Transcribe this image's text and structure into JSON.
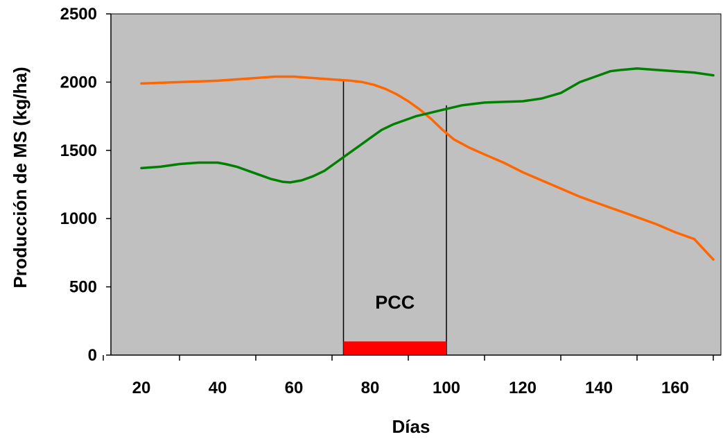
{
  "chart_data": {
    "type": "line",
    "xlabel": "Días",
    "ylabel": "Producción de MS (kg/ha)",
    "xlim": [
      12,
      172
    ],
    "ylim": [
      0,
      2500
    ],
    "x_ticks": [
      20,
      40,
      60,
      80,
      100,
      120,
      140,
      160
    ],
    "y_ticks": [
      0,
      500,
      1000,
      1500,
      2000,
      2500
    ],
    "grid": false,
    "plot_background": "#c0c0c0",
    "series": [
      {
        "color": "#ff6600",
        "points": [
          [
            20,
            1990
          ],
          [
            30,
            2000
          ],
          [
            40,
            2010
          ],
          [
            50,
            2030
          ],
          [
            55,
            2040
          ],
          [
            60,
            2040
          ],
          [
            70,
            2020
          ],
          [
            75,
            2010
          ],
          [
            78,
            2000
          ],
          [
            81,
            1980
          ],
          [
            84,
            1950
          ],
          [
            87,
            1910
          ],
          [
            90,
            1860
          ],
          [
            93,
            1800
          ],
          [
            96,
            1730
          ],
          [
            99,
            1650
          ],
          [
            102,
            1580
          ],
          [
            106,
            1520
          ],
          [
            110,
            1470
          ],
          [
            115,
            1410
          ],
          [
            120,
            1340
          ],
          [
            125,
            1280
          ],
          [
            130,
            1220
          ],
          [
            135,
            1160
          ],
          [
            140,
            1110
          ],
          [
            145,
            1060
          ],
          [
            150,
            1010
          ],
          [
            155,
            960
          ],
          [
            160,
            900
          ],
          [
            165,
            850
          ],
          [
            170,
            700
          ]
        ]
      },
      {
        "color": "#008000",
        "points": [
          [
            20,
            1370
          ],
          [
            25,
            1380
          ],
          [
            30,
            1400
          ],
          [
            35,
            1410
          ],
          [
            40,
            1410
          ],
          [
            42,
            1400
          ],
          [
            45,
            1380
          ],
          [
            48,
            1350
          ],
          [
            51,
            1320
          ],
          [
            54,
            1290
          ],
          [
            57,
            1270
          ],
          [
            59,
            1265
          ],
          [
            62,
            1280
          ],
          [
            65,
            1310
          ],
          [
            68,
            1350
          ],
          [
            71,
            1410
          ],
          [
            74,
            1470
          ],
          [
            77,
            1530
          ],
          [
            80,
            1590
          ],
          [
            83,
            1650
          ],
          [
            86,
            1690
          ],
          [
            89,
            1720
          ],
          [
            92,
            1750
          ],
          [
            95,
            1770
          ],
          [
            98,
            1790
          ],
          [
            101,
            1810
          ],
          [
            104,
            1830
          ],
          [
            107,
            1840
          ],
          [
            110,
            1850
          ],
          [
            115,
            1855
          ],
          [
            120,
            1860
          ],
          [
            125,
            1880
          ],
          [
            130,
            1920
          ],
          [
            135,
            2000
          ],
          [
            140,
            2050
          ],
          [
            143,
            2080
          ],
          [
            146,
            2090
          ],
          [
            150,
            2100
          ],
          [
            155,
            2090
          ],
          [
            160,
            2080
          ],
          [
            165,
            2070
          ],
          [
            170,
            2050
          ]
        ]
      }
    ],
    "annotations": [
      {
        "type": "vline",
        "x": 73,
        "y_top": 2020,
        "color": "#000000"
      },
      {
        "type": "vline",
        "x": 100,
        "y_top": 1830,
        "color": "#000000"
      },
      {
        "type": "span_bar",
        "x_start": 73,
        "x_end": 100,
        "y_bottom": 0,
        "y_top": 100,
        "color": "#ff0000"
      },
      {
        "type": "text",
        "text": "PCC",
        "x": 86.5,
        "y": 340
      }
    ]
  }
}
